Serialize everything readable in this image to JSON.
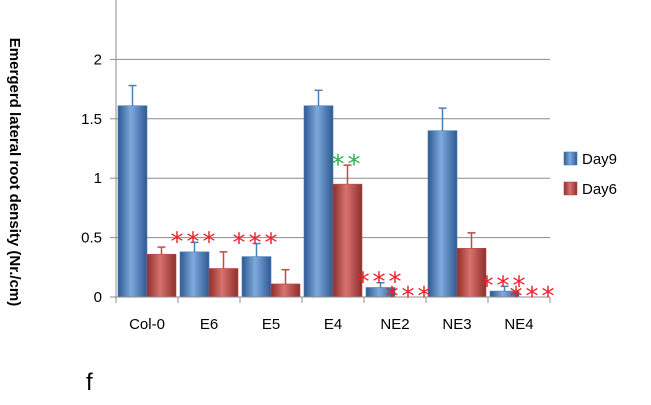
{
  "chart_data": {
    "type": "bar",
    "ylabel": "Emergerd lateral root  density (Nr./cm)",
    "ylim": [
      0,
      2.5
    ],
    "yticks": [
      "0",
      "0.5",
      "1",
      "1.5",
      "2"
    ],
    "grid": true,
    "legend_position": "right",
    "categories": [
      "Col-0",
      "E6",
      "E5",
      "E4",
      "NE2",
      "NE3",
      "NE4"
    ],
    "series": [
      {
        "name": "Day9",
        "color": "#4a7ebb",
        "values": [
          1.61,
          0.38,
          0.34,
          1.61,
          0.08,
          1.4,
          0.05
        ],
        "errors": [
          0.17,
          0.08,
          0.11,
          0.13,
          0.04,
          0.19,
          0.04
        ]
      },
      {
        "name": "Day6",
        "color": "#be4b48",
        "values": [
          0.36,
          0.24,
          0.11,
          0.95,
          0.0,
          0.41,
          0.0
        ],
        "errors": [
          0.06,
          0.14,
          0.12,
          0.16,
          0.0,
          0.13,
          0.0
        ]
      }
    ],
    "annotations": [
      {
        "category": "E6",
        "series": "Day9",
        "text": "***",
        "color": "#e8232a"
      },
      {
        "category": "E5",
        "series": "Day9",
        "text": "***",
        "color": "#e8232a"
      },
      {
        "category": "E4",
        "series": "Day6",
        "text": "**",
        "color": "#2fae4a"
      },
      {
        "category": "NE2",
        "series": "Day9",
        "text": "***",
        "color": "#e8232a"
      },
      {
        "category": "NE2",
        "series": "Day6",
        "text": "***",
        "color": "#e8232a"
      },
      {
        "category": "NE4",
        "series": "Day9",
        "text": "***",
        "color": "#e8232a"
      },
      {
        "category": "NE4",
        "series": "Day6",
        "text": "***",
        "color": "#e8232a"
      }
    ]
  },
  "panel_label": "f"
}
